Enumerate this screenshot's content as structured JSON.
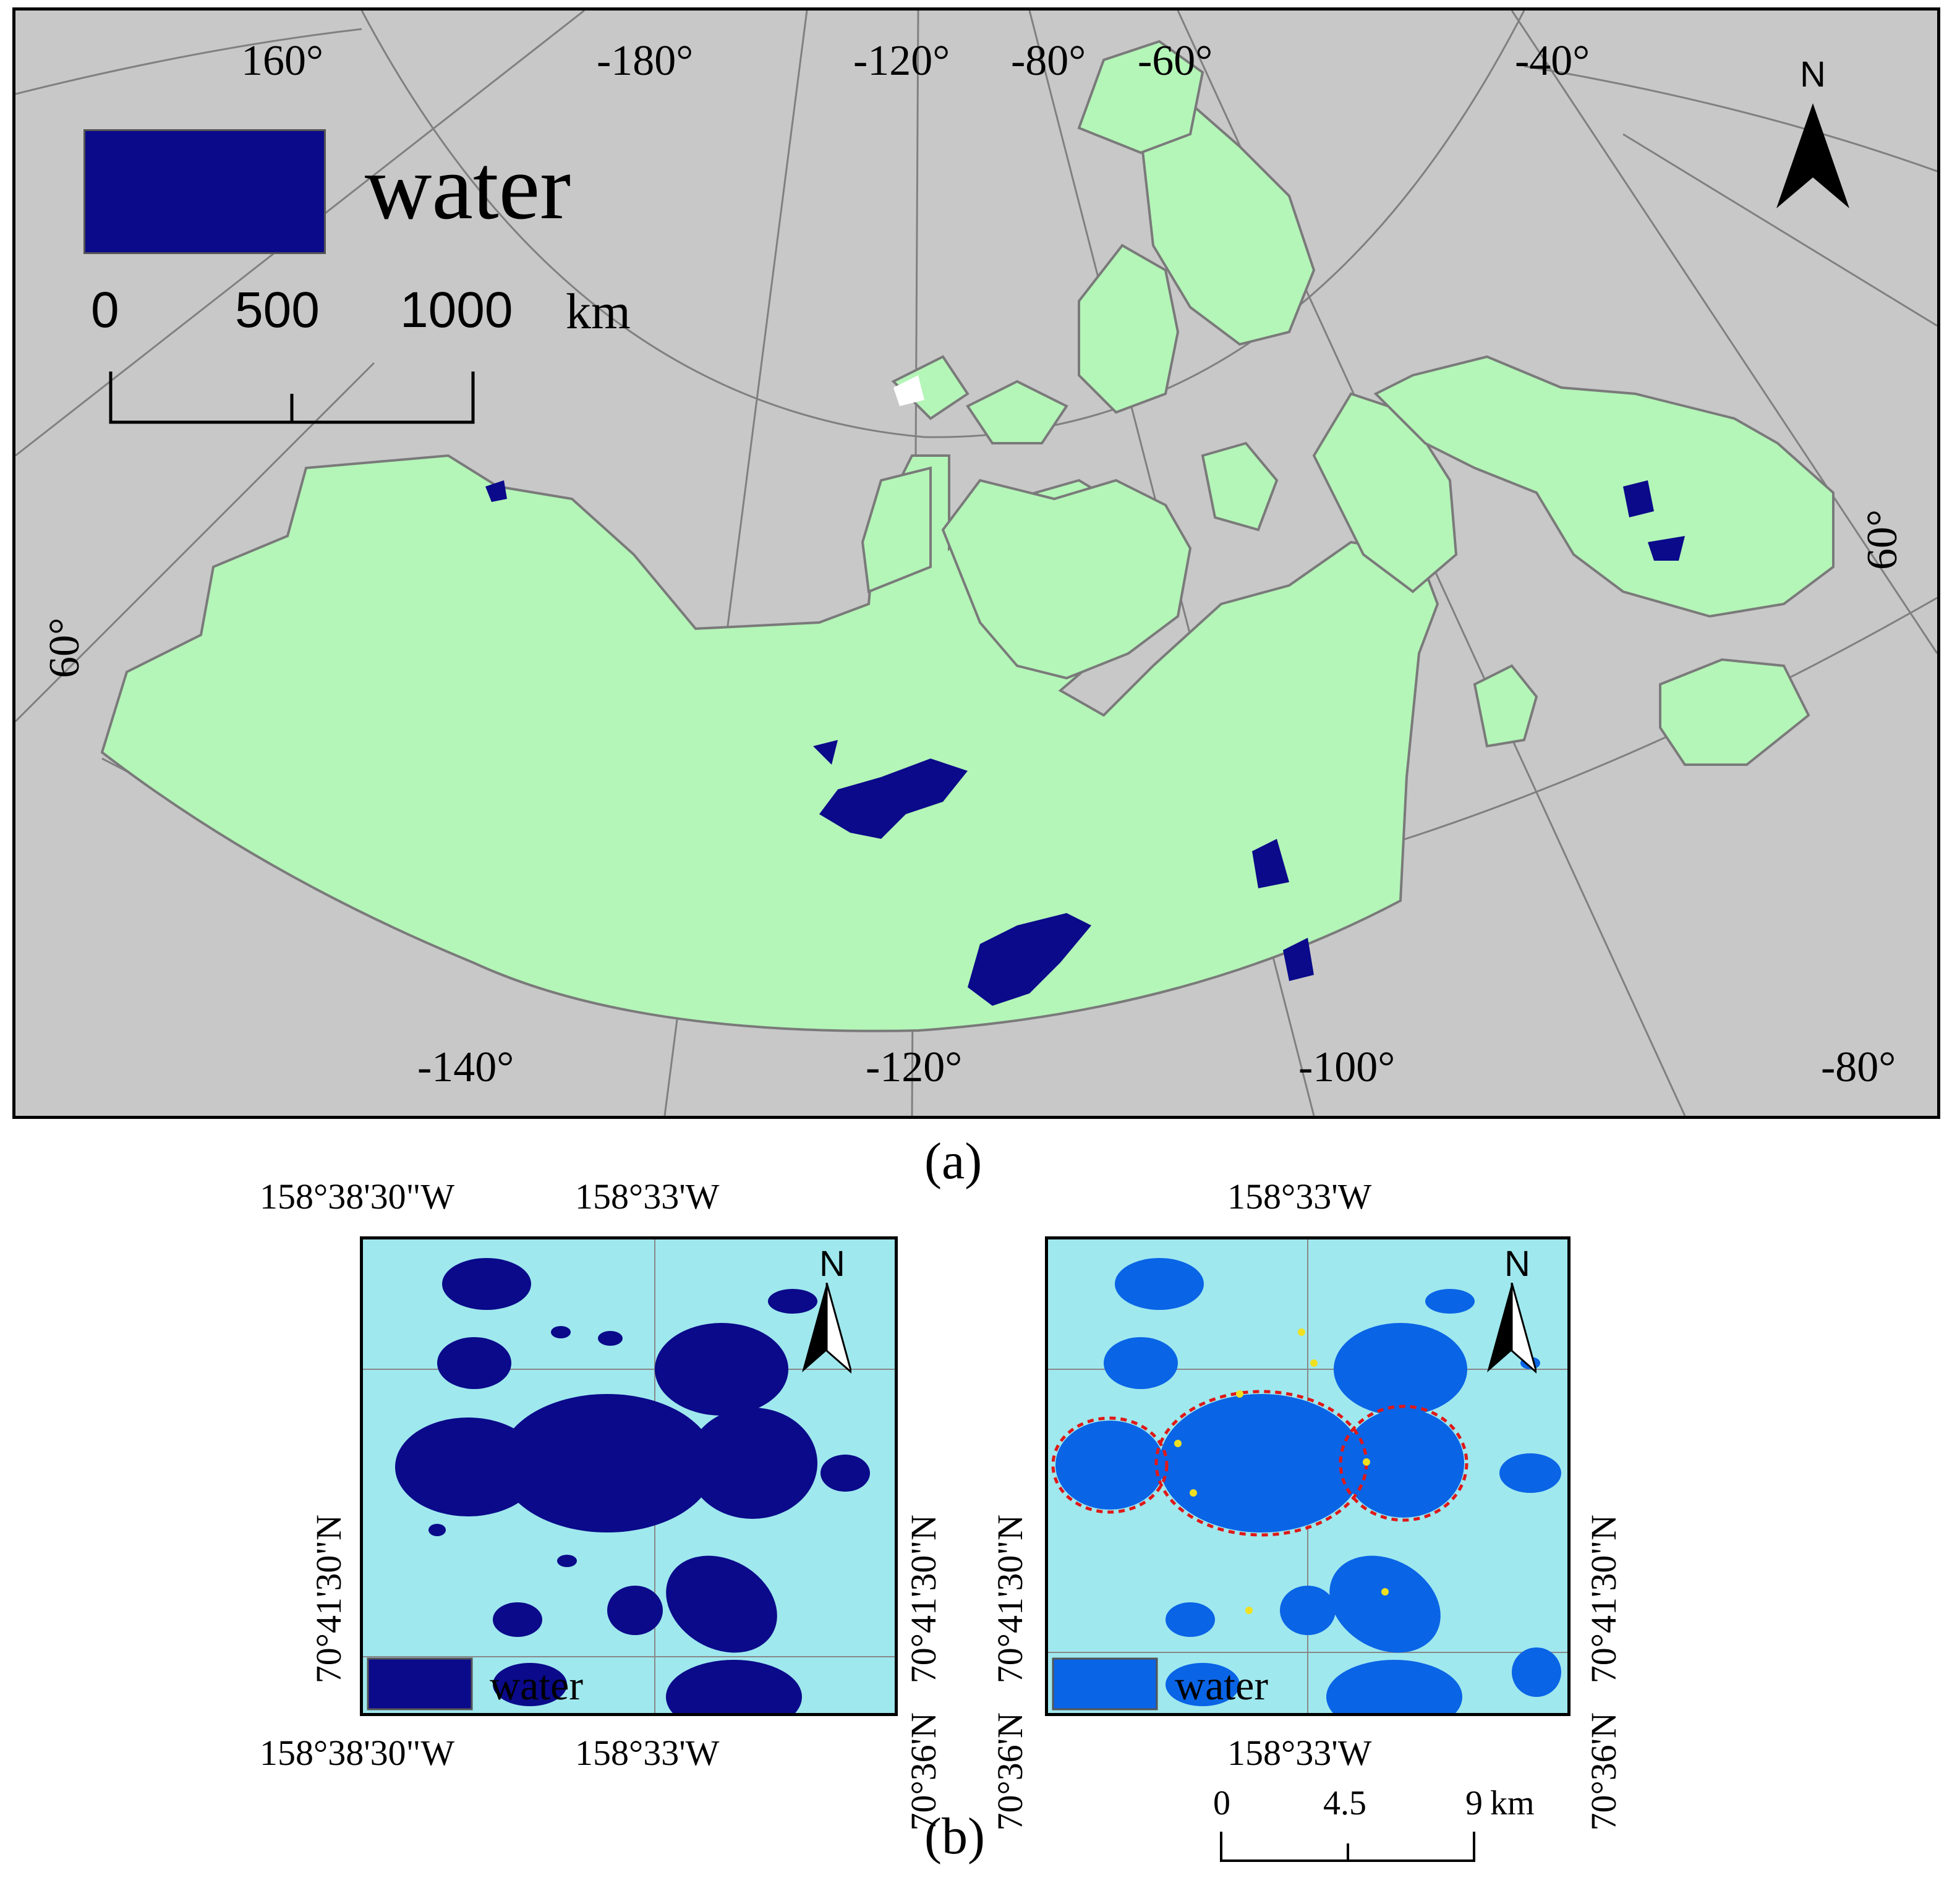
{
  "panel_a": {
    "caption": "(a)",
    "colors": {
      "background": "#c8c8c8",
      "land": "#b4f5b8",
      "water": "#0a0a8a",
      "graticule": "#808080"
    },
    "legend": {
      "label": "water",
      "color": "#0a0a8a"
    },
    "scale_bar": {
      "ticks": [
        "0",
        "500",
        "1000"
      ],
      "unit": "km"
    },
    "north_arrow": "N",
    "top_longitudes": [
      "160°",
      "-180°",
      "-120°",
      "-80°",
      "-60°",
      "-40°"
    ],
    "bottom_longitudes": [
      "-140°",
      "-120°",
      "-100°",
      "-80°"
    ],
    "latitude_left": "60°",
    "latitude_right": "60°"
  },
  "panel_b": {
    "caption": "(b)",
    "left_map": {
      "legend": {
        "label": "water",
        "color": "#0a0a8a"
      },
      "lon_top": [
        "158°38'30\"W",
        "158°33'W"
      ],
      "lon_bottom": [
        "158°38'30\"W",
        "158°33'W"
      ],
      "lat_left": [
        "70°41'30\"N",
        "70°41'30\"N"
      ],
      "lat_right": [
        "70°41'30\"N",
        "70°36'N"
      ],
      "north_arrow": "N"
    },
    "right_map": {
      "legend": {
        "label": "water",
        "color": "#0a64e6"
      },
      "lon_top": [
        "158°33'W"
      ],
      "lon_bottom": [
        "158°33'W"
      ],
      "lat_left": [
        "70°41'30\"N",
        "70°36'N"
      ],
      "lat_right": [
        "70°41'30\"N",
        "70°36'N"
      ],
      "north_arrow": "N",
      "outline_color": "#e01818",
      "marker_color": "#f0e020"
    },
    "scale_bar": {
      "ticks": [
        "0",
        "4.5",
        "9"
      ],
      "unit": "km"
    },
    "colors": {
      "background": "#9fe8ee",
      "water_left": "#0a0a8a",
      "water_right": "#0a64e6"
    }
  }
}
